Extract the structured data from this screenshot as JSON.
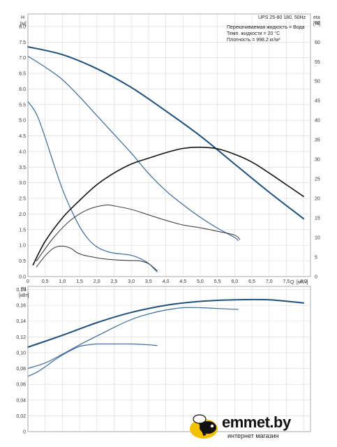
{
  "chart_data": [
    {
      "type": "line",
      "ylabel": "H",
      "yunit": "[м]",
      "y2label": "eta",
      "y2unit": "[%]",
      "xlabel": "Q",
      "xunit": "[м³/ч]",
      "xlim": [
        0,
        8.2
      ],
      "ylim": [
        0,
        8.4
      ],
      "y2lim": [
        0,
        67.2
      ],
      "x_ticks": [
        "0",
        "0,5",
        "1,0",
        "1,5",
        "2,0",
        "2,5",
        "3,0",
        "3,5",
        "4,0",
        "4,5",
        "5,0",
        "5,5",
        "6,0",
        "6,5",
        "7,0",
        "7,5",
        "8,0"
      ],
      "y_ticks": [
        "0.0",
        "0.5",
        "1.0",
        "1.5",
        "2.0",
        "2.5",
        "3.0",
        "3.5",
        "4.0",
        "4.5",
        "5.0",
        "5.5",
        "6.0",
        "6.5",
        "7.0",
        "7.5",
        "8.0"
      ],
      "y2_ticks": [
        "0",
        "5",
        "10",
        "15",
        "20",
        "25",
        "30",
        "35",
        "40",
        "45",
        "50",
        "55",
        "60",
        "65"
      ],
      "grid": true,
      "info_box": {
        "title": "UPS 25-80 180, 50Hz",
        "lines": [
          "Перекачиваемая жидкость = Вода",
          "Темп. жидкости = 20 °C",
          "Плотность = 998.2 кг/м³"
        ]
      },
      "series": [
        {
          "axis": "left",
          "color": "#1f4e79",
          "width": 2.0,
          "x": [
            0,
            1,
            2,
            3,
            4,
            5,
            6,
            7,
            8
          ],
          "y": [
            7.35,
            7.1,
            6.65,
            6.05,
            5.3,
            4.5,
            3.6,
            2.7,
            1.85
          ]
        },
        {
          "axis": "left",
          "color": "#3d6a98",
          "width": 1.2,
          "x": [
            0,
            0.5,
            1,
            1.5,
            2,
            2.5,
            3,
            3.5,
            4,
            4.5,
            5,
            5.5,
            6,
            6.1
          ],
          "y": [
            7.05,
            6.7,
            6.3,
            5.75,
            5.15,
            4.55,
            3.95,
            3.3,
            2.75,
            2.3,
            1.9,
            1.55,
            1.25,
            1.15
          ]
        },
        {
          "axis": "left",
          "color": "#3d6a98",
          "width": 1.2,
          "x": [
            0,
            0.25,
            0.5,
            0.75,
            1,
            1.25,
            1.5,
            1.75,
            2,
            2.25,
            2.5,
            2.75,
            3,
            3.25,
            3.5,
            3.75
          ],
          "y": [
            5.6,
            5.2,
            4.45,
            3.6,
            2.8,
            2.15,
            1.6,
            1.2,
            0.95,
            0.82,
            0.75,
            0.72,
            0.68,
            0.58,
            0.42,
            0.15
          ]
        },
        {
          "axis": "right",
          "color": "#111111",
          "width": 1.6,
          "x": [
            0.15,
            0.5,
            1,
            1.5,
            2,
            2.5,
            3,
            3.5,
            4,
            4.5,
            5,
            5.5,
            6,
            6.5,
            7,
            7.5,
            8
          ],
          "y": [
            3,
            9,
            15,
            19.5,
            23.5,
            26.5,
            28.8,
            30.3,
            31.7,
            32.8,
            33.1,
            32.7,
            31.3,
            29.3,
            26.5,
            23.5,
            20.5
          ]
        },
        {
          "axis": "right",
          "color": "#333333",
          "width": 1.0,
          "x": [
            0.25,
            0.75,
            1.25,
            1.75,
            2.25,
            2.5,
            3,
            3.5,
            4,
            4.5,
            5,
            5.5,
            6,
            6.15
          ],
          "y": [
            4,
            10,
            14.5,
            17.2,
            18.3,
            18.1,
            17.2,
            15.8,
            14.4,
            13.2,
            12.5,
            11.6,
            10.6,
            9.5
          ]
        },
        {
          "axis": "right",
          "color": "#333333",
          "width": 1.0,
          "x": [
            0.25,
            0.5,
            0.75,
            1,
            1.25,
            1.5,
            2,
            2.5,
            3,
            3.25,
            3.5,
            3.75
          ],
          "y": [
            2.5,
            5.3,
            7.3,
            7.8,
            7.2,
            5.8,
            4.8,
            4.3,
            4.1,
            4,
            3.3,
            1.5
          ]
        }
      ]
    },
    {
      "type": "line",
      "ylabel": "P1",
      "yunit": "[кВт]",
      "xlim": [
        0,
        8.2
      ],
      "ylim": [
        0,
        0.184
      ],
      "y_ticks": [
        "0",
        "0,02",
        "0,04",
        "0,06",
        "0,08",
        "0,10",
        "0,12",
        "0,14",
        "0,16",
        "0,18"
      ],
      "grid": true,
      "series": [
        {
          "color": "#1f4e79",
          "width": 2.0,
          "x": [
            0,
            1,
            2,
            3,
            4,
            5,
            6,
            7,
            8
          ],
          "y": [
            0.107,
            0.122,
            0.138,
            0.151,
            0.16,
            0.165,
            0.167,
            0.167,
            0.163
          ]
        },
        {
          "color": "#3d6a98",
          "width": 1.2,
          "x": [
            0,
            0.5,
            1,
            1.5,
            2,
            2.5,
            3,
            3.5,
            4,
            4.5,
            5,
            5.5,
            6,
            6.1
          ],
          "y": [
            0.08,
            0.087,
            0.098,
            0.11,
            0.121,
            0.132,
            0.142,
            0.149,
            0.154,
            0.157,
            0.157,
            0.156,
            0.155,
            0.155
          ]
        },
        {
          "color": "#3d6a98",
          "width": 1.2,
          "x": [
            0,
            0.25,
            0.5,
            0.75,
            1,
            1.25,
            1.5,
            1.75,
            2,
            2.5,
            3,
            3.5,
            3.75
          ],
          "y": [
            0.07,
            0.075,
            0.082,
            0.09,
            0.097,
            0.103,
            0.108,
            0.11,
            0.111,
            0.111,
            0.111,
            0.11,
            0.109
          ]
        }
      ]
    }
  ],
  "logo": {
    "brand": "emmet.by",
    "tagline": "интернет магазин",
    "accent": "#f2c200"
  }
}
